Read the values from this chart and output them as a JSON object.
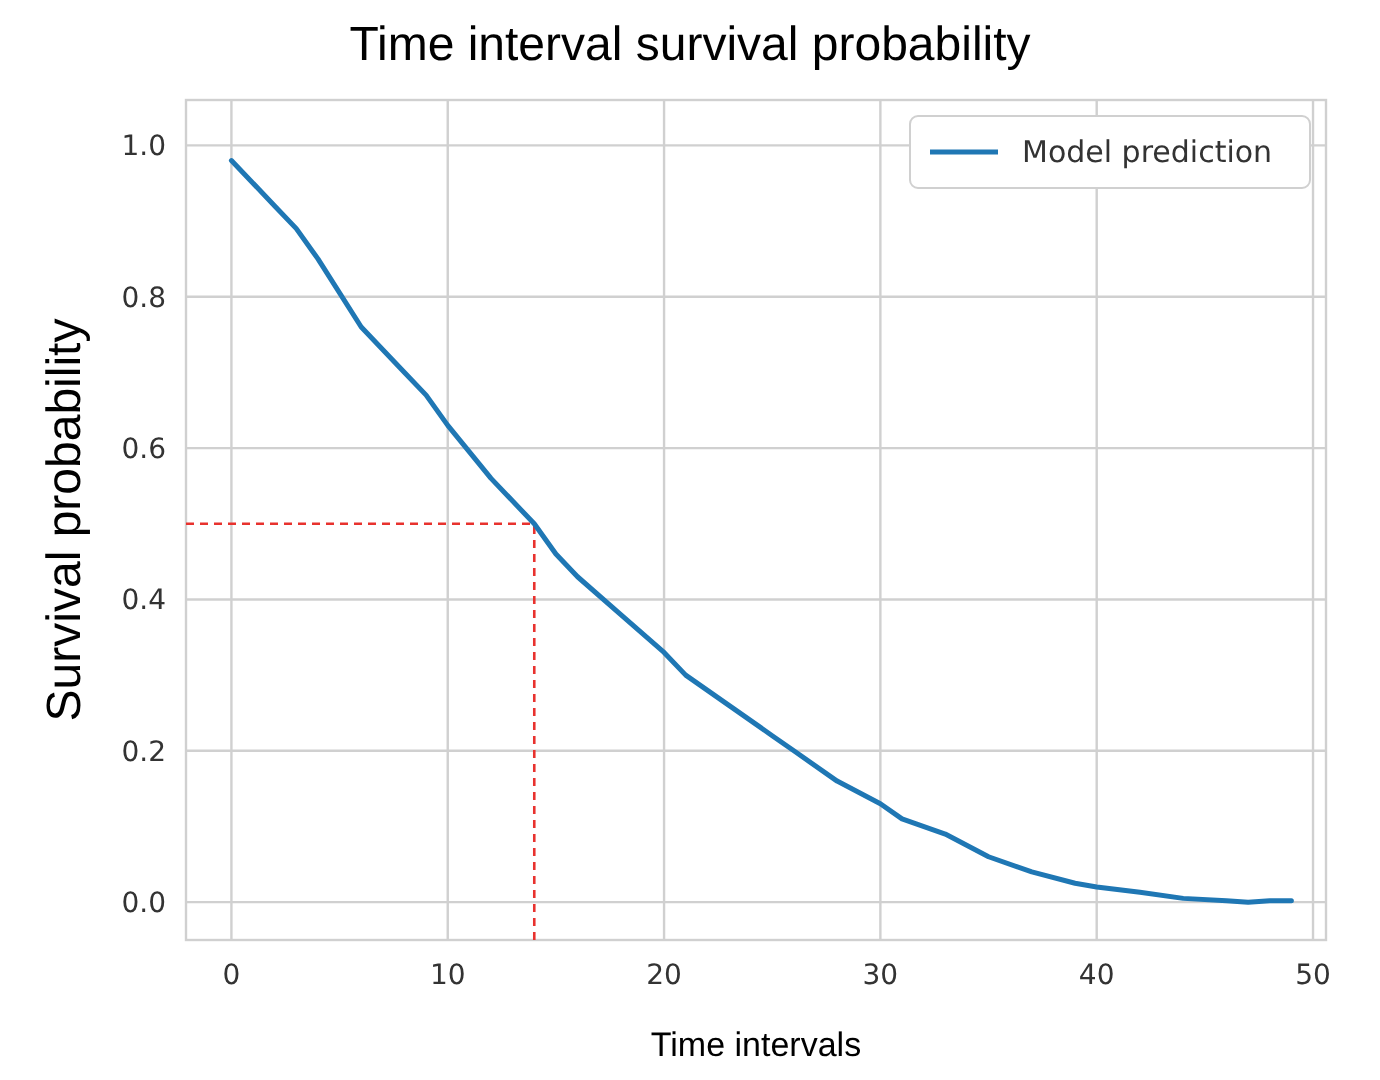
{
  "chart_data": {
    "type": "line",
    "title": "Time interval survival probability",
    "xlabel": "Time intervals",
    "ylabel": "Survival probability",
    "x": [
      0,
      2,
      3,
      4,
      6,
      8,
      9,
      10,
      12,
      14,
      15,
      16,
      18,
      20,
      21,
      23,
      25,
      26,
      28,
      30,
      31,
      33,
      35,
      37,
      39,
      40,
      42,
      44,
      46,
      47,
      48,
      49
    ],
    "series": [
      {
        "name": "Model prediction",
        "color": "#1f77b4",
        "values": [
          0.98,
          0.92,
          0.89,
          0.85,
          0.76,
          0.7,
          0.67,
          0.63,
          0.56,
          0.5,
          0.46,
          0.43,
          0.38,
          0.33,
          0.3,
          0.26,
          0.22,
          0.2,
          0.16,
          0.13,
          0.11,
          0.09,
          0.06,
          0.04,
          0.025,
          0.02,
          0.013,
          0.005,
          0.002,
          0.0,
          0.002,
          0.002
        ]
      }
    ],
    "xlim": [
      -2.1,
      50.6
    ],
    "xticks": [
      0,
      10,
      20,
      30,
      40,
      50
    ],
    "ylim": [
      -0.05,
      1.06
    ],
    "yticks": [
      {
        "value": 0,
        "label": "0.0"
      },
      0.2,
      0.4,
      0.6,
      0.8,
      {
        "value": 1,
        "label": "1.0"
      }
    ],
    "grid": true,
    "legend": "top right",
    "line_style": "solid",
    "marker": "none",
    "ref_lines": [
      {
        "axis": "y",
        "value": 0.5,
        "color": "#e8322e",
        "line_style": "dashed"
      },
      {
        "axis": "x",
        "value": 14,
        "color": "#e8322e",
        "line_style": "dashed"
      }
    ]
  }
}
